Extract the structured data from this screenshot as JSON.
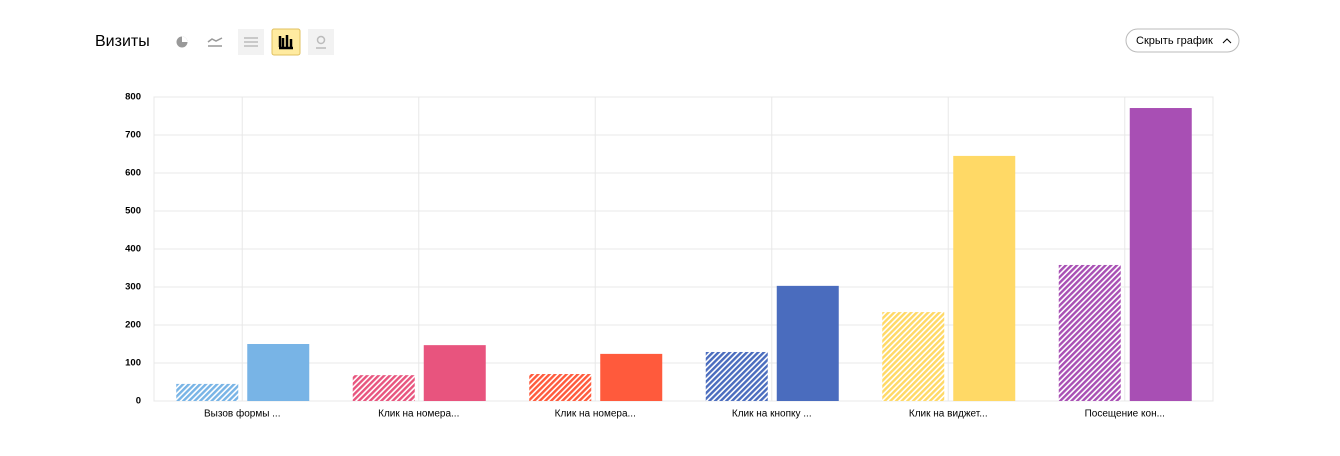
{
  "toolbar": {
    "hide_chart": "Скрыть график"
  },
  "chart_data": {
    "type": "bar",
    "title": "Визиты",
    "categories": [
      "Вызов формы ...",
      "Клик на номера...",
      "Клик на номера...",
      "Клик на кнопку ...",
      "Клик на виджет...",
      "Посещение кон..."
    ],
    "colors": [
      "#78b4e6",
      "#e8547e",
      "#ff5a3c",
      "#4a6cbe",
      "#ffd966",
      "#a84fb4"
    ],
    "series": [
      {
        "pattern": "hatched",
        "values": [
          45,
          68,
          71,
          129,
          234,
          358
        ]
      },
      {
        "pattern": "solid",
        "values": [
          150,
          147,
          124,
          303,
          645,
          771
        ]
      }
    ],
    "ylim": [
      0,
      800
    ],
    "yticks": [
      0,
      100,
      200,
      300,
      400,
      500,
      600,
      700,
      800
    ],
    "grid": true
  }
}
